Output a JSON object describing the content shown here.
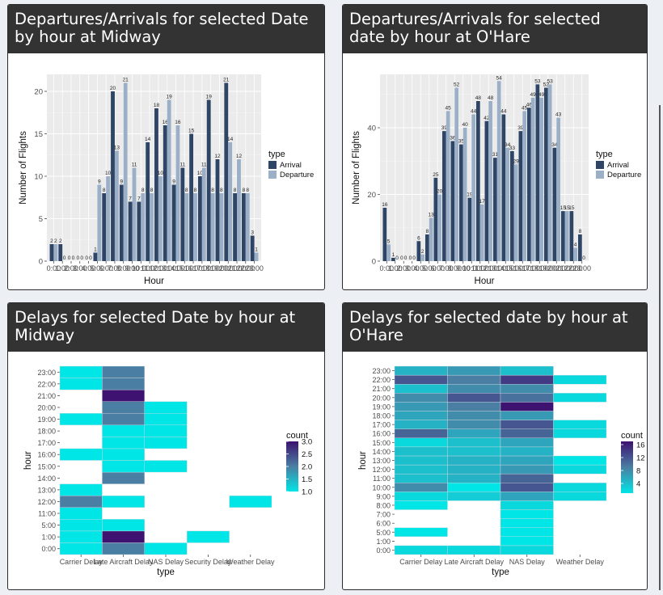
{
  "panels": [
    {
      "title": "Departures/Arrivals for selected Date by hour at Midway"
    },
    {
      "title": "Departures/Arrivals for selected date by hour at O'Hare"
    },
    {
      "title": "Delays for selected Date by hour at Midway"
    },
    {
      "title": "Delays for selected date by hour at O'Hare"
    }
  ],
  "colors": {
    "arrival": "#2e4566",
    "departure": "#9bafc7",
    "heat_low": "#00e5e5",
    "heat_high": "#3d1270",
    "panel_bg": "#ebebeb"
  },
  "chart_data": [
    {
      "type": "bar",
      "xlabel": "Hour",
      "ylabel": "Number of Flights",
      "legend_title": "type",
      "legend_position": "right",
      "ylim": [
        0,
        22
      ],
      "yticks": [
        0,
        5,
        10,
        15,
        20
      ],
      "categories": [
        "0:00",
        "1:00",
        "2:00",
        "3:00",
        "4:00",
        "5:00",
        "6:00",
        "7:00",
        "8:00",
        "9:00",
        "10:00",
        "11:00",
        "12:00",
        "13:00",
        "14:00",
        "15:00",
        "16:00",
        "17:00",
        "18:00",
        "19:00",
        "20:00",
        "21:00",
        "22:00",
        "23:00"
      ],
      "series": [
        {
          "name": "Arrival",
          "values": [
            2,
            2,
            0,
            0,
            0,
            1,
            8,
            20,
            9,
            7,
            7,
            14,
            18,
            16,
            9,
            11,
            15,
            10,
            19,
            12,
            21,
            8,
            8,
            3
          ]
        },
        {
          "name": "Departure",
          "values": [
            2,
            0,
            0,
            0,
            0,
            9,
            10,
            13,
            21,
            11,
            8,
            8,
            10,
            19,
            16,
            8,
            8,
            11,
            8,
            8,
            14,
            12,
            8,
            1
          ]
        }
      ]
    },
    {
      "type": "bar",
      "xlabel": "Hour",
      "ylabel": "Number of Flights",
      "legend_title": "type",
      "legend_position": "right",
      "ylim": [
        0,
        56
      ],
      "yticks": [
        0,
        20,
        40
      ],
      "categories": [
        "0:00",
        "1:00",
        "2:00",
        "3:00",
        "4:00",
        "5:00",
        "6:00",
        "7:00",
        "8:00",
        "9:00",
        "10:00",
        "11:00",
        "12:00",
        "13:00",
        "14:00",
        "15:00",
        "16:00",
        "17:00",
        "18:00",
        "19:00",
        "20:00",
        "21:00",
        "22:00",
        "23:00"
      ],
      "series": [
        {
          "name": "Arrival",
          "values": [
            16,
            1,
            0,
            0,
            6,
            8,
            25,
            39,
            36,
            35,
            19,
            48,
            42,
            31,
            44,
            33,
            39,
            46,
            53,
            52,
            34,
            15,
            15,
            8
          ]
        },
        {
          "name": "Departure",
          "values": [
            5,
            0,
            0,
            0,
            2,
            13,
            20,
            45,
            52,
            40,
            44,
            17,
            48,
            54,
            34,
            29,
            45,
            49,
            49,
            53,
            43,
            15,
            4,
            0
          ]
        }
      ]
    },
    {
      "type": "heatmap",
      "xlabel": "type",
      "ylabel": "hour",
      "legend_title": "count",
      "legend_position": "right",
      "x": [
        "Carrier Delay",
        "Late Aircraft Delay",
        "NAS Delay",
        "Security Delay",
        "Weather Delay"
      ],
      "y": [
        "0:00",
        "1:00",
        "5:00",
        "11:00",
        "12:00",
        "13:00",
        "14:00",
        "15:00",
        "16:00",
        "17:00",
        "18:00",
        "19:00",
        "20:00",
        "21:00",
        "22:00",
        "23:00"
      ],
      "range": [
        1,
        3
      ],
      "legend_ticks": [
        "1.0",
        "1.5",
        "2.0",
        "2.5",
        "3.0"
      ],
      "cells": [
        [
          "0:00",
          0,
          1
        ],
        [
          "0:00",
          1,
          2
        ],
        [
          "0:00",
          2,
          1
        ],
        [
          "1:00",
          0,
          1
        ],
        [
          "1:00",
          1,
          3
        ],
        [
          "1:00",
          3,
          1
        ],
        [
          "5:00",
          0,
          1
        ],
        [
          "5:00",
          1,
          1
        ],
        [
          "11:00",
          0,
          1
        ],
        [
          "12:00",
          0,
          2
        ],
        [
          "12:00",
          1,
          1
        ],
        [
          "12:00",
          4,
          1
        ],
        [
          "13:00",
          0,
          1
        ],
        [
          "14:00",
          1,
          2
        ],
        [
          "15:00",
          1,
          1
        ],
        [
          "15:00",
          2,
          1
        ],
        [
          "16:00",
          0,
          1
        ],
        [
          "16:00",
          1,
          1
        ],
        [
          "17:00",
          1,
          1
        ],
        [
          "17:00",
          2,
          1
        ],
        [
          "18:00",
          1,
          1
        ],
        [
          "18:00",
          2,
          1
        ],
        [
          "19:00",
          0,
          1
        ],
        [
          "19:00",
          1,
          2
        ],
        [
          "19:00",
          2,
          1
        ],
        [
          "20:00",
          1,
          2
        ],
        [
          "20:00",
          2,
          1
        ],
        [
          "21:00",
          1,
          3
        ],
        [
          "22:00",
          0,
          1
        ],
        [
          "22:00",
          1,
          2
        ],
        [
          "23:00",
          0,
          1
        ],
        [
          "23:00",
          1,
          2
        ]
      ]
    },
    {
      "type": "heatmap",
      "xlabel": "type",
      "ylabel": "hour",
      "legend_title": "count",
      "legend_position": "right",
      "x": [
        "Carrier Delay",
        "Late Aircraft Delay",
        "NAS Delay",
        "Weather Delay"
      ],
      "y": [
        "0:00",
        "1:00",
        "5:00",
        "6:00",
        "7:00",
        "8:00",
        "9:00",
        "10:00",
        "11:00",
        "12:00",
        "13:00",
        "14:00",
        "15:00",
        "16:00",
        "17:00",
        "18:00",
        "19:00",
        "20:00",
        "21:00",
        "22:00",
        "23:00"
      ],
      "range": [
        1,
        17
      ],
      "legend_ticks": [
        "4",
        "8",
        "12",
        "16"
      ],
      "cells": [
        [
          "0:00",
          0,
          2
        ],
        [
          "0:00",
          1,
          2
        ],
        [
          "0:00",
          2,
          2
        ],
        [
          "1:00",
          2,
          1
        ],
        [
          "5:00",
          0,
          1
        ],
        [
          "5:00",
          2,
          1
        ],
        [
          "6:00",
          2,
          1
        ],
        [
          "7:00",
          2,
          1
        ],
        [
          "8:00",
          0,
          1
        ],
        [
          "8:00",
          2,
          2
        ],
        [
          "9:00",
          0,
          2
        ],
        [
          "9:00",
          1,
          3
        ],
        [
          "9:00",
          2,
          6
        ],
        [
          "9:00",
          3,
          2
        ],
        [
          "10:00",
          0,
          8
        ],
        [
          "10:00",
          1,
          1
        ],
        [
          "10:00",
          2,
          12
        ],
        [
          "10:00",
          3,
          2
        ],
        [
          "11:00",
          0,
          4
        ],
        [
          "11:00",
          1,
          5
        ],
        [
          "11:00",
          2,
          11
        ],
        [
          "12:00",
          0,
          4
        ],
        [
          "12:00",
          1,
          5
        ],
        [
          "12:00",
          2,
          7
        ],
        [
          "12:00",
          3,
          2
        ],
        [
          "13:00",
          0,
          4
        ],
        [
          "13:00",
          1,
          5
        ],
        [
          "13:00",
          2,
          6
        ],
        [
          "13:00",
          3,
          1
        ],
        [
          "14:00",
          0,
          4
        ],
        [
          "14:00",
          1,
          4
        ],
        [
          "14:00",
          2,
          5
        ],
        [
          "15:00",
          0,
          2
        ],
        [
          "15:00",
          1,
          4
        ],
        [
          "15:00",
          2,
          6
        ],
        [
          "16:00",
          0,
          11
        ],
        [
          "16:00",
          1,
          6
        ],
        [
          "16:00",
          2,
          11
        ],
        [
          "16:00",
          3,
          2
        ],
        [
          "17:00",
          0,
          5
        ],
        [
          "17:00",
          1,
          8
        ],
        [
          "17:00",
          2,
          12
        ],
        [
          "17:00",
          3,
          2
        ],
        [
          "18:00",
          0,
          6
        ],
        [
          "18:00",
          1,
          8
        ],
        [
          "18:00",
          2,
          7
        ],
        [
          "19:00",
          0,
          7
        ],
        [
          "19:00",
          1,
          9
        ],
        [
          "19:00",
          2,
          17
        ],
        [
          "20:00",
          0,
          8
        ],
        [
          "20:00",
          1,
          12
        ],
        [
          "20:00",
          2,
          10
        ],
        [
          "20:00",
          3,
          2
        ],
        [
          "21:00",
          0,
          4
        ],
        [
          "21:00",
          1,
          8
        ],
        [
          "21:00",
          2,
          8
        ],
        [
          "22:00",
          0,
          12
        ],
        [
          "22:00",
          1,
          9
        ],
        [
          "22:00",
          2,
          14
        ],
        [
          "22:00",
          3,
          2
        ],
        [
          "23:00",
          0,
          5
        ],
        [
          "23:00",
          1,
          7
        ],
        [
          "23:00",
          2,
          4
        ]
      ]
    }
  ]
}
